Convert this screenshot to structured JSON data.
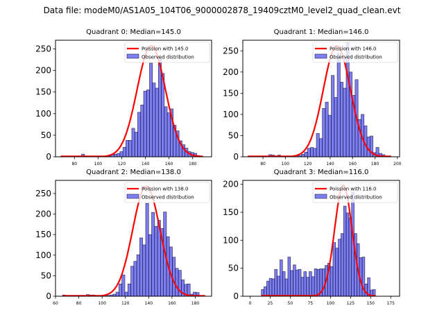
{
  "suptitle": "Data file: modeM0/AS1A05_104T06_9000002878_19409cztM0_level2_quad_clean.evt",
  "chart_data": [
    {
      "type": "bar",
      "title": "Quadrant 0: Median=145.0",
      "median": 145.0,
      "legend": [
        "Poission with 145.0",
        "Observed distribution"
      ],
      "legend_position": "top-right",
      "xlim": [
        64,
        196
      ],
      "ylim": [
        0,
        270
      ],
      "xticks": [
        80,
        100,
        120,
        140,
        160,
        180
      ],
      "yticks": [
        0,
        50,
        100,
        150,
        200,
        250
      ],
      "bin_start": 68.5,
      "bin_width": 2.5,
      "values": [
        2,
        1,
        1,
        1,
        1,
        1,
        1,
        6,
        2,
        1,
        1,
        1,
        1,
        1,
        1,
        2,
        2,
        5,
        6,
        8,
        12,
        22,
        38,
        38,
        66,
        57,
        103,
        120,
        152,
        155,
        217,
        171,
        159,
        230,
        193,
        116,
        102,
        111,
        73,
        60,
        37,
        28,
        20,
        12,
        10,
        8,
        3,
        2
      ],
      "poisson_mean": 145.0,
      "poisson_peak": 257,
      "poisson_sigma": 12.0
    },
    {
      "type": "bar",
      "title": "Quadrant 1: Median=146.0",
      "median": 146.0,
      "legend": [
        "Poission with 146.0",
        "Observed distribution"
      ],
      "legend_position": "top-right",
      "xlim": [
        62,
        202
      ],
      "ylim": [
        0,
        275
      ],
      "xticks": [
        80,
        100,
        120,
        140,
        160,
        180,
        200
      ],
      "yticks": [
        0,
        50,
        100,
        150,
        200,
        250
      ],
      "bin_start": 66.5,
      "bin_width": 2.66,
      "values": [
        1,
        1,
        1,
        1,
        1,
        1,
        1,
        5,
        4,
        1,
        4,
        1,
        1,
        1,
        1,
        3,
        2,
        3,
        6,
        11,
        20,
        22,
        20,
        55,
        43,
        114,
        129,
        98,
        192,
        140,
        244,
        176,
        162,
        269,
        200,
        145,
        182,
        88,
        100,
        73,
        47,
        49,
        10,
        22,
        8,
        5,
        2,
        2
      ],
      "poisson_mean": 146.0,
      "poisson_peak": 262,
      "poisson_sigma": 12.1
    },
    {
      "type": "bar",
      "title": "Quadrant 2: Median=138.0",
      "median": 138.0,
      "legend": [
        "Poission with 138.0",
        "Observed distribution"
      ],
      "legend_position": "top-right",
      "xlim": [
        60,
        194
      ],
      "ylim": [
        0,
        282
      ],
      "xticks": [
        60,
        80,
        100,
        120,
        140,
        160,
        180
      ],
      "yticks": [
        0,
        50,
        100,
        150,
        200,
        250
      ],
      "bin_start": 66,
      "bin_width": 2.55,
      "values": [
        3,
        1,
        1,
        1,
        1,
        1,
        2,
        1,
        4,
        3,
        3,
        1,
        1,
        1,
        1,
        2,
        3,
        5,
        10,
        30,
        52,
        10,
        30,
        73,
        85,
        101,
        142,
        125,
        226,
        150,
        204,
        170,
        185,
        165,
        205,
        145,
        120,
        95,
        68,
        63,
        40,
        29,
        30,
        5,
        10,
        9,
        1,
        1
      ],
      "poisson_mean": 138.0,
      "poisson_peak": 268,
      "poisson_sigma": 11.7
    },
    {
      "type": "bar",
      "title": "Quadrant 3: Median=116.0",
      "median": 116.0,
      "legend": [
        "Poission with 116.0",
        "Observed distribution"
      ],
      "legend_position": "top-right",
      "xlim": [
        -9,
        186
      ],
      "ylim": [
        0,
        207
      ],
      "xticks": [
        0,
        25,
        50,
        75,
        100,
        125,
        150,
        175
      ],
      "yticks": [
        0,
        50,
        100,
        150,
        200
      ],
      "bin_start": 14,
      "bin_width": 3.3,
      "values": [
        12,
        17,
        27,
        32,
        31,
        48,
        36,
        65,
        44,
        31,
        70,
        46,
        56,
        47,
        48,
        34,
        44,
        34,
        44,
        35,
        49,
        48,
        49,
        49,
        55,
        59,
        53,
        96,
        86,
        102,
        112,
        161,
        149,
        140,
        186,
        112,
        94,
        69,
        70,
        22,
        33,
        11,
        12
      ],
      "poisson_mean": 116.0,
      "poisson_peak": 198,
      "poisson_sigma": 10.8
    }
  ]
}
